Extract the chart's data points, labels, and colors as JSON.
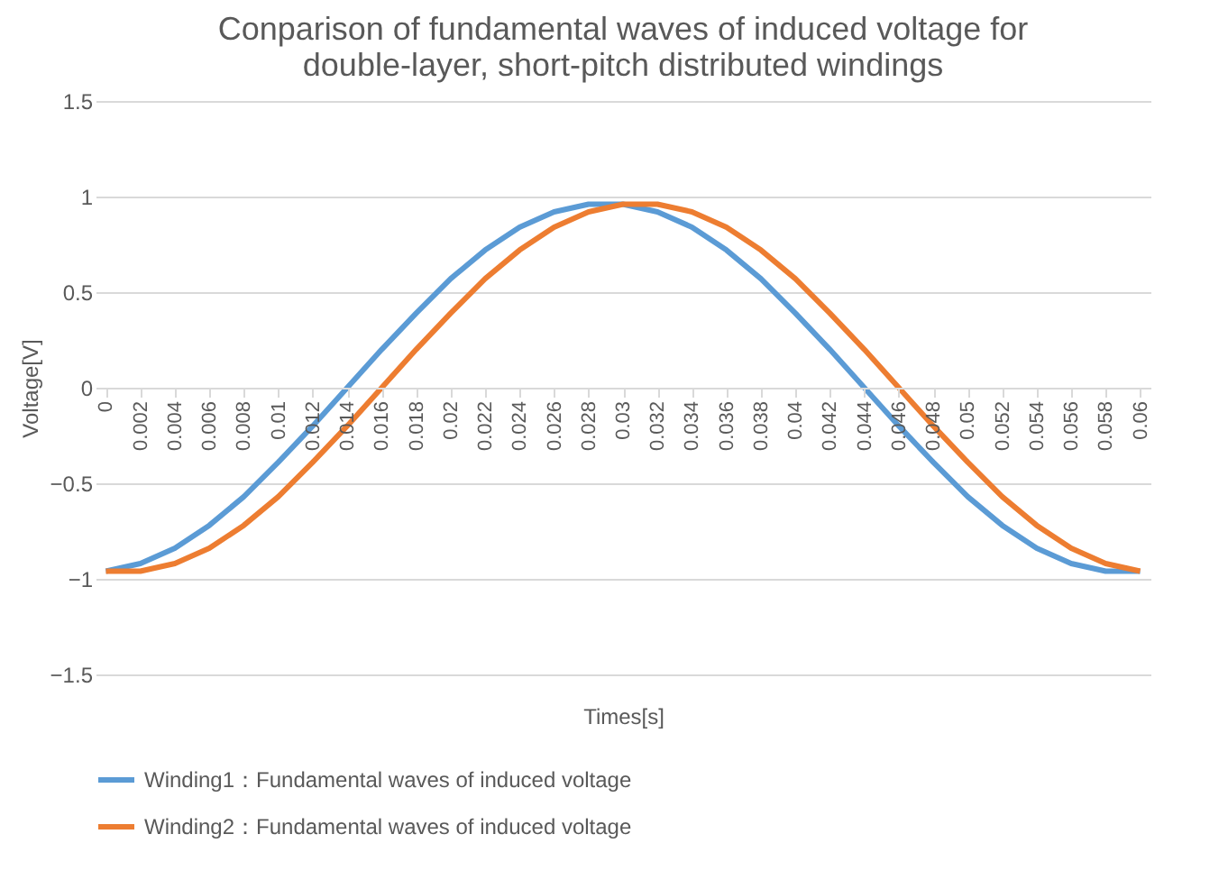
{
  "chart_data": {
    "type": "line",
    "title": "Conparison of fundamental waves of induced voltage for double-layer, short-pitch distributed windings",
    "xlabel": "Times[s]",
    "ylabel": "Voltage[V]",
    "categories": [
      "0",
      "0.002",
      "0.004",
      "0.006",
      "0.008",
      "0.01",
      "0.012",
      "0.014",
      "0.016",
      "0.018",
      "0.02",
      "0.022",
      "0.024",
      "0.026",
      "0.028",
      "0.03",
      "0.032",
      "0.034",
      "0.036",
      "0.038",
      "0.04",
      "0.042",
      "0.044",
      "0.046",
      "0.048",
      "0.05",
      "0.052",
      "0.054",
      "0.056",
      "0.058",
      "0.06"
    ],
    "series": [
      {
        "name": "Winding1：Fundamental waves of induced voltage",
        "color": "#5b9bd5",
        "values": [
          -0.96,
          -0.92,
          -0.84,
          -0.72,
          -0.57,
          -0.39,
          -0.2,
          0,
          0.2,
          0.39,
          0.57,
          0.72,
          0.84,
          0.92,
          0.96,
          0.96,
          0.92,
          0.84,
          0.72,
          0.57,
          0.39,
          0.2,
          0,
          -0.2,
          -0.39,
          -0.57,
          -0.72,
          -0.84,
          -0.92,
          -0.96,
          -0.96
        ]
      },
      {
        "name": "Winding2：Fundamental waves of induced voltage",
        "color": "#ed7d31",
        "values": [
          -0.96,
          -0.96,
          -0.92,
          -0.84,
          -0.72,
          -0.57,
          -0.39,
          -0.2,
          0,
          0.2,
          0.39,
          0.57,
          0.72,
          0.84,
          0.92,
          0.96,
          0.96,
          0.92,
          0.84,
          0.72,
          0.57,
          0.39,
          0.2,
          0,
          -0.2,
          -0.39,
          -0.57,
          -0.72,
          -0.84,
          -0.92,
          -0.96
        ]
      }
    ],
    "ylim": [
      -1.5,
      1.5
    ],
    "yticks": [
      -1.5,
      -1,
      -0.5,
      0,
      0.5,
      1,
      1.5
    ],
    "grid": "y",
    "legend": "bottom",
    "marker": "none",
    "line_style": "solid"
  }
}
